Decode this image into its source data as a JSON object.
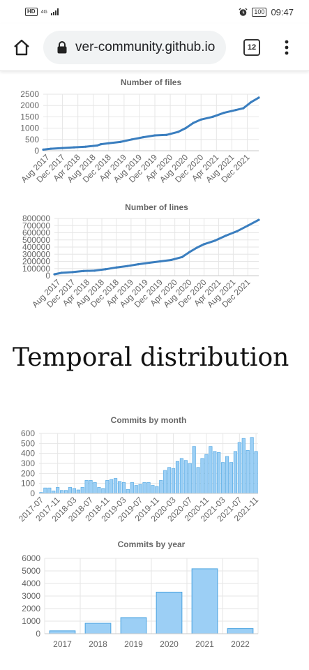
{
  "status_bar": {
    "hd": "HD",
    "network": "4G",
    "battery": "100",
    "time": "09:47",
    "icons": [
      "alarm-icon",
      "signal-icon",
      "battery-icon"
    ]
  },
  "browser": {
    "url": "ver-community.github.io",
    "tab_count": "12",
    "icons": [
      "home-icon",
      "lock-icon",
      "menu-icon"
    ]
  },
  "section_heading": "Temporal distribution",
  "colors": {
    "line": "#3a7ebf",
    "bar_fill": "#9ccff5",
    "bar_stroke": "#4aa3e0"
  },
  "chart_data": [
    {
      "type": "line",
      "title": "Number of files",
      "y_ticks": [
        0,
        500,
        1000,
        1500,
        2000,
        2500
      ],
      "ylim": [
        0,
        2500
      ],
      "x_tick_labels": [
        "Aug 2017",
        "Dec 2017",
        "Apr 2018",
        "Aug 2018",
        "Dec 2018",
        "Apr 2019",
        "Aug 2019",
        "Dec 2019",
        "Apr 2020",
        "Aug 2020",
        "Dec 2020",
        "Apr 2021",
        "Aug 2021",
        "Dec 2021"
      ],
      "grid": true,
      "series": [
        {
          "x": [
            "2017-07",
            "2017-09",
            "2017-12",
            "2018-03",
            "2018-06",
            "2018-09",
            "2018-10",
            "2018-12",
            "2019-03",
            "2019-06",
            "2019-09",
            "2019-12",
            "2020-03",
            "2020-06",
            "2020-08",
            "2020-10",
            "2020-12",
            "2021-03",
            "2021-06",
            "2021-09",
            "2021-11",
            "2022-01",
            "2022-03"
          ],
          "y": [
            50,
            90,
            120,
            150,
            180,
            230,
            290,
            330,
            390,
            500,
            600,
            680,
            700,
            830,
            1000,
            1230,
            1380,
            1500,
            1680,
            1800,
            1880,
            2150,
            2350
          ]
        }
      ]
    },
    {
      "type": "line",
      "title": "Number of lines",
      "y_ticks": [
        0,
        100000,
        200000,
        300000,
        400000,
        500000,
        600000,
        700000,
        800000
      ],
      "ylim": [
        0,
        800000
      ],
      "x_tick_labels": [
        "Aug 2017",
        "Dec 2017",
        "Apr 2018",
        "Aug 2018",
        "Dec 2018",
        "Apr 2019",
        "Aug 2019",
        "Dec 2019",
        "Apr 2020",
        "Aug 2020",
        "Dec 2020",
        "Apr 2021",
        "Aug 2021",
        "Dec 2021"
      ],
      "grid": true,
      "series": [
        {
          "x": [
            "2017-07",
            "2017-09",
            "2017-12",
            "2018-03",
            "2018-06",
            "2018-09",
            "2018-12",
            "2019-03",
            "2019-06",
            "2019-09",
            "2019-12",
            "2020-03",
            "2020-06",
            "2020-08",
            "2020-10",
            "2020-12",
            "2021-03",
            "2021-06",
            "2021-09",
            "2021-12",
            "2022-03"
          ],
          "y": [
            20000,
            40000,
            50000,
            65000,
            70000,
            90000,
            115000,
            135000,
            160000,
            180000,
            200000,
            220000,
            260000,
            330000,
            390000,
            440000,
            490000,
            560000,
            620000,
            700000,
            780000
          ]
        }
      ]
    },
    {
      "type": "bar",
      "title": "Commits by month",
      "y_ticks": [
        0,
        100,
        200,
        300,
        400,
        500,
        600
      ],
      "ylim": [
        0,
        600
      ],
      "x_tick_labels": [
        "2017-07",
        "2017-11",
        "2018-03",
        "2018-07",
        "2018-11",
        "2019-03",
        "2019-07",
        "2019-11",
        "2020-03",
        "2020-07",
        "2020-11",
        "2021-03",
        "2021-07",
        "2021-11"
      ],
      "grid": true,
      "values": [
        10,
        55,
        55,
        25,
        60,
        30,
        30,
        60,
        50,
        35,
        60,
        130,
        130,
        110,
        60,
        50,
        130,
        140,
        150,
        120,
        110,
        40,
        110,
        80,
        90,
        110,
        110,
        80,
        70,
        130,
        230,
        260,
        250,
        320,
        350,
        330,
        300,
        470,
        260,
        350,
        390,
        470,
        420,
        410,
        310,
        370,
        310,
        420,
        510,
        550,
        430,
        560,
        420
      ]
    },
    {
      "type": "bar",
      "title": "Commits by year",
      "categories": [
        "2017",
        "2018",
        "2019",
        "2020",
        "2021",
        "2022"
      ],
      "values": [
        230,
        830,
        1280,
        3310,
        5170,
        410
      ],
      "y_ticks": [
        0,
        1000,
        2000,
        3000,
        4000,
        5000,
        6000
      ],
      "ylim": [
        0,
        6000
      ],
      "grid": true
    }
  ]
}
